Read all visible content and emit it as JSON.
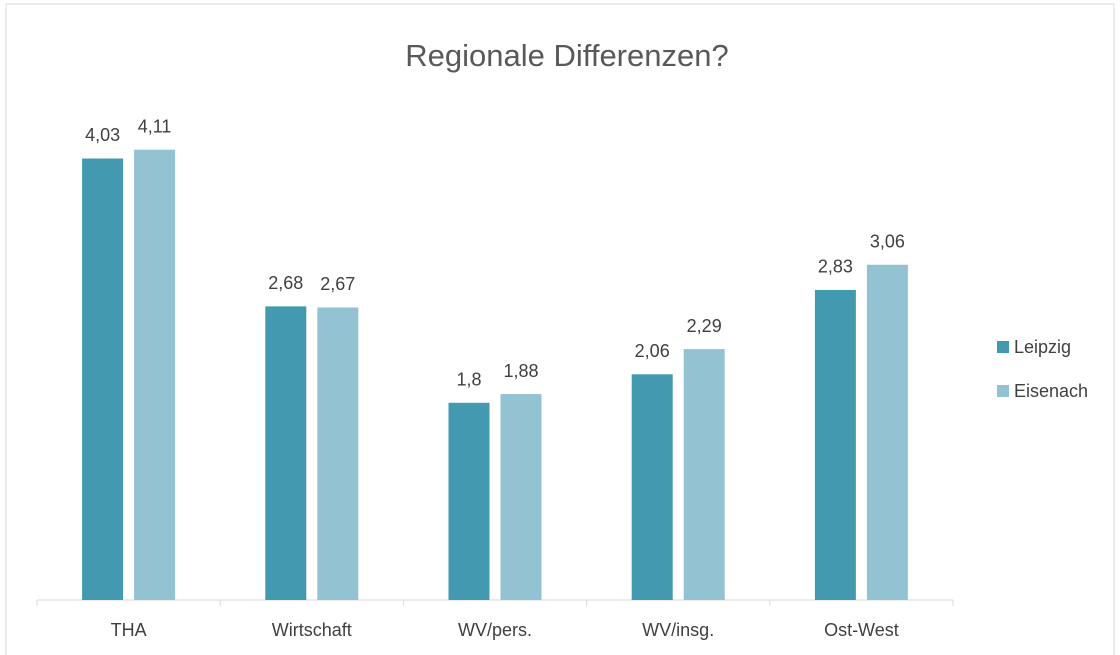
{
  "chart_data": {
    "type": "bar",
    "title": "Regionale Differenzen?",
    "categories": [
      "THA",
      "Wirtschaft",
      "WV/pers.",
      "WV/insg.",
      "Ost-West"
    ],
    "series": [
      {
        "name": "Leipzig",
        "color": "#4299b0",
        "values": [
          4.03,
          2.68,
          1.8,
          2.06,
          2.83
        ],
        "value_labels": [
          "4,03",
          "2,68",
          "1,8",
          "2,06",
          "2,83"
        ]
      },
      {
        "name": "Eisenach",
        "color": "#93c3d3",
        "values": [
          4.11,
          2.67,
          1.88,
          2.29,
          3.06
        ],
        "value_labels": [
          "4,11",
          "2,67",
          "1,88",
          "2,29",
          "3,06"
        ]
      }
    ],
    "ylim": [
      0,
      4.5
    ],
    "legend": "right"
  }
}
